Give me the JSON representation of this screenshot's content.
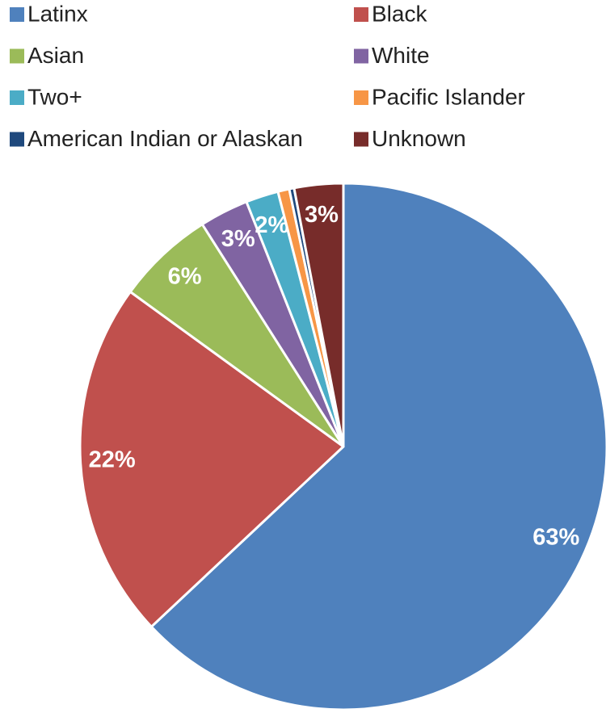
{
  "chart_data": {
    "type": "pie",
    "categories": [
      "Latinx",
      "Black",
      "Asian",
      "White",
      "Two+",
      "Pacific Islander",
      "American Indian or Alaskan",
      "Unknown"
    ],
    "values": [
      63,
      22,
      6,
      3,
      2,
      0.7,
      0.3,
      3
    ],
    "value_labels": [
      "63%",
      "22%",
      "6%",
      "3%",
      "2%",
      null,
      null,
      "3%"
    ],
    "colors": [
      "#4f81bd",
      "#c0504d",
      "#9bbb59",
      "#8064a2",
      "#4bacc6",
      "#f79646",
      "#1f497d",
      "#772c2a"
    ],
    "legend": "top"
  }
}
